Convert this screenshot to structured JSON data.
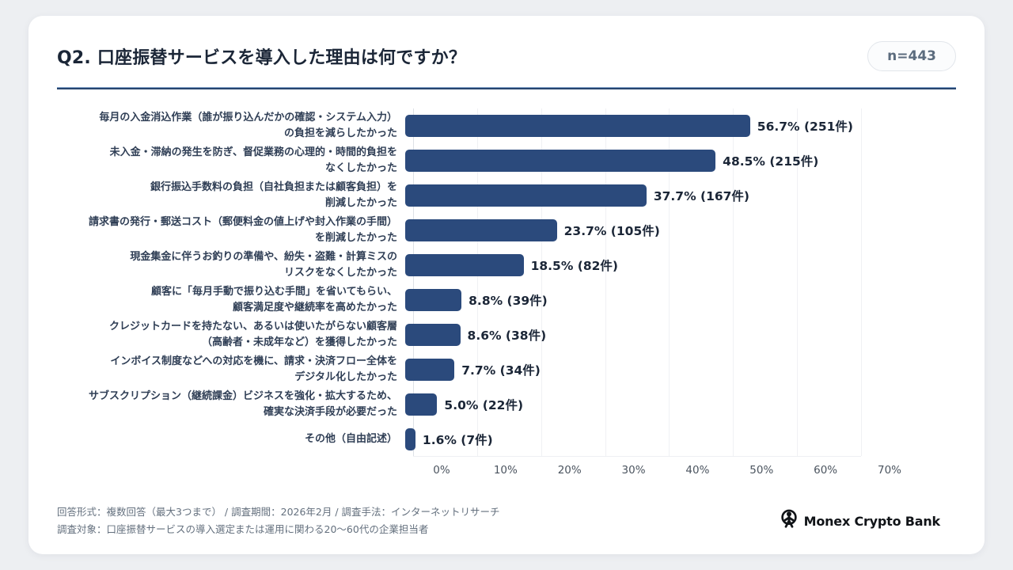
{
  "header": {
    "title": "Q2. 口座振替サービスを導入した理由は何ですか？",
    "sample_badge": "n=443"
  },
  "chart_data": {
    "type": "bar",
    "orientation": "horizontal",
    "title": "Q2. 口座振替サービスを導入した理由は何ですか？",
    "sample_size_label": "n=443",
    "xlim": [
      0,
      70
    ],
    "x_ticks": [
      "0%",
      "10%",
      "20%",
      "30%",
      "40%",
      "50%",
      "60%",
      "70%"
    ],
    "grid": true,
    "legend": "none",
    "bar_color": "#2b4a7c",
    "categories": [
      "毎月の入金消込作業（誰が振り込んだかの確認・システム入力）の負担を減らしたかった",
      "未入金・滞納の発生を防ぎ、督促業務の心理的・時間的負担をなくしたかった",
      "銀行振込手数料の負担（自社負担または顧客負担）を削減したかった",
      "請求書の発行・郵送コスト（郵便料金の値上げや封入作業の手間）を削減したかった",
      "現金集金に伴うお釣りの準備や、紛失・盗難・計算ミスのリスクをなくしたかった",
      "顧客に「毎月手動で振り込む手間」を省いてもらい、顧客満足度や継続率を高めたかった",
      "クレジットカードを持たない、あるいは使いたがらない顧客層（高齢者・未成年など）を獲得したかった",
      "インボイス制度などへの対応を機に、請求・決済フロー全体をデジタル化したかった",
      "サブスクリプション（継続課金）ビジネスを強化・拡大するため、確実な決済手段が必要だった",
      "その他（自由記述）"
    ],
    "label_lines": [
      [
        "毎月の入金消込作業（誰が振り込んだかの確認・システム入力）",
        "の負担を減らしたかった"
      ],
      [
        "未入金・滞納の発生を防ぎ、督促業務の心理的・時間的負担を",
        "なくしたかった"
      ],
      [
        "銀行振込手数料の負担（自社負担または顧客負担）を",
        "削減したかった"
      ],
      [
        "請求書の発行・郵送コスト（郵便料金の値上げや封入作業の手間）",
        "を削減したかった"
      ],
      [
        "現金集金に伴うお釣りの準備や、紛失・盗難・計算ミスの",
        "リスクをなくしたかった"
      ],
      [
        "顧客に「毎月手動で振り込む手間」を省いてもらい、",
        "顧客満足度や継続率を高めたかった"
      ],
      [
        "クレジットカードを持たない、あるいは使いたがらない顧客層",
        "（高齢者・未成年など）を獲得したかった"
      ],
      [
        "インボイス制度などへの対応を機に、請求・決済フロー全体を",
        "デジタル化したかった"
      ],
      [
        "サブスクリプション（継続課金）ビジネスを強化・拡大するため、",
        "確実な決済手段が必要だった"
      ],
      [
        "その他（自由記述）"
      ]
    ],
    "values": [
      56.7,
      48.5,
      37.7,
      23.7,
      18.5,
      8.8,
      8.6,
      7.7,
      5.0,
      1.6
    ],
    "counts": [
      251,
      215,
      167,
      105,
      82,
      39,
      38,
      34,
      22,
      7
    ],
    "value_labels": [
      "56.7% (251件)",
      "48.5% (215件)",
      "37.7% (167件)",
      "23.7% (105件)",
      "18.5% (82件)",
      "8.8% (39件)",
      "8.6% (38件)",
      "7.7% (34件)",
      "5.0% (22件)",
      "1.6% (7件)"
    ]
  },
  "footer": {
    "line1": "回答形式：複数回答（最大3つまで） / 調査期間：2026年2月 / 調査手法：インターネットリサーチ",
    "line2": "調査対象：口座振替サービスの導入選定または運用に関わる20〜60代の企業担当者",
    "logo_text": "Monex Crypto Bank"
  },
  "colors": {
    "page_bg": "#edeff2",
    "card_bg": "#ffffff",
    "bar": "#2b4a7c",
    "accent_line": "#27456f",
    "title_text": "#1b2637",
    "label_text": "#2f3e55",
    "axis_text": "#4b545f",
    "footer_text": "#64707e"
  }
}
